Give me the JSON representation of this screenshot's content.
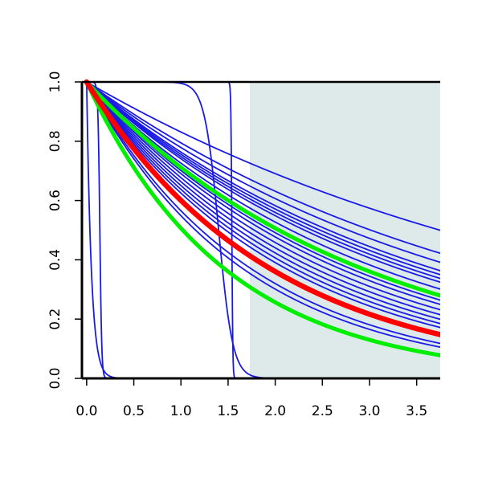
{
  "chart_data": {
    "type": "line",
    "title": "",
    "xlabel": "",
    "ylabel": "",
    "xlim": [
      -0.05,
      3.75
    ],
    "ylim": [
      0,
      1
    ],
    "x_ticks": [
      "0.0",
      "0.5",
      "1.0",
      "1.5",
      "2.0",
      "2.5",
      "3.0",
      "3.5"
    ],
    "y_ticks": [
      "0.0",
      "0.2",
      "0.4",
      "0.6",
      "0.8",
      "1.0"
    ],
    "shaded_region": {
      "x_from": 1.73,
      "x_to": 3.75,
      "color": "#deeaea"
    },
    "colors": {
      "primary": "#1a1ae6",
      "highlight": "#ff0000",
      "reference": "#00ee00",
      "shade": "#deeaea"
    },
    "series": [
      {
        "kind": "exp",
        "rate": 0.185,
        "color": "#1a1ae6",
        "width": 1.8
      },
      {
        "kind": "exp",
        "rate": 0.23,
        "color": "#1a1ae6",
        "width": 1.8
      },
      {
        "kind": "exp",
        "rate": 0.25,
        "color": "#1a1ae6",
        "width": 1.8
      },
      {
        "kind": "exp",
        "rate": 0.27,
        "color": "#1a1ae6",
        "width": 1.8
      },
      {
        "kind": "exp",
        "rate": 0.28,
        "color": "#1a1ae6",
        "width": 1.8
      },
      {
        "kind": "exp",
        "rate": 0.29,
        "color": "#1a1ae6",
        "width": 1.8
      },
      {
        "kind": "exp",
        "rate": 0.3,
        "color": "#1a1ae6",
        "width": 1.8
      },
      {
        "kind": "exp",
        "rate": 0.32,
        "color": "#1a1ae6",
        "width": 1.8
      },
      {
        "kind": "exp",
        "rate": 0.34,
        "color": "#1a1ae6",
        "width": 1.8
      },
      {
        "kind": "exp",
        "rate": 0.355,
        "color": "#1a1ae6",
        "width": 1.8
      },
      {
        "kind": "exp",
        "rate": 0.37,
        "color": "#1a1ae6",
        "width": 1.8
      },
      {
        "kind": "exp",
        "rate": 0.39,
        "color": "#1a1ae6",
        "width": 1.8
      },
      {
        "kind": "exp",
        "rate": 0.41,
        "color": "#1a1ae6",
        "width": 1.8
      },
      {
        "kind": "exp",
        "rate": 0.43,
        "color": "#1a1ae6",
        "width": 1.8
      },
      {
        "kind": "exp",
        "rate": 0.45,
        "color": "#1a1ae6",
        "width": 1.8
      },
      {
        "kind": "exp",
        "rate": 0.47,
        "color": "#1a1ae6",
        "width": 1.8
      },
      {
        "kind": "exp",
        "rate": 0.57,
        "color": "#1a1ae6",
        "width": 1.8
      },
      {
        "kind": "exp",
        "rate": 0.6,
        "color": "#1a1ae6",
        "width": 1.8
      },
      {
        "kind": "exp",
        "rate": 20,
        "color": "#1a1ae6",
        "width": 1.8
      },
      {
        "kind": "logistic",
        "center": 0.14,
        "scale": 0.01,
        "color": "#1a1ae6",
        "width": 1.8
      },
      {
        "kind": "logistic",
        "center": 1.4,
        "scale": 0.075,
        "color": "#1a1ae6",
        "width": 1.8
      },
      {
        "kind": "logistic",
        "center": 1.54,
        "scale": 0.005,
        "color": "#1a1ae6",
        "width": 1.8
      },
      {
        "kind": "exp",
        "rate": 0.34,
        "color": "#00ee00",
        "width": 5
      },
      {
        "kind": "exp",
        "rate": 0.68,
        "color": "#00ee00",
        "width": 5
      },
      {
        "kind": "exp",
        "rate": 0.51,
        "color": "#ff0000",
        "width": 6.5
      }
    ]
  }
}
